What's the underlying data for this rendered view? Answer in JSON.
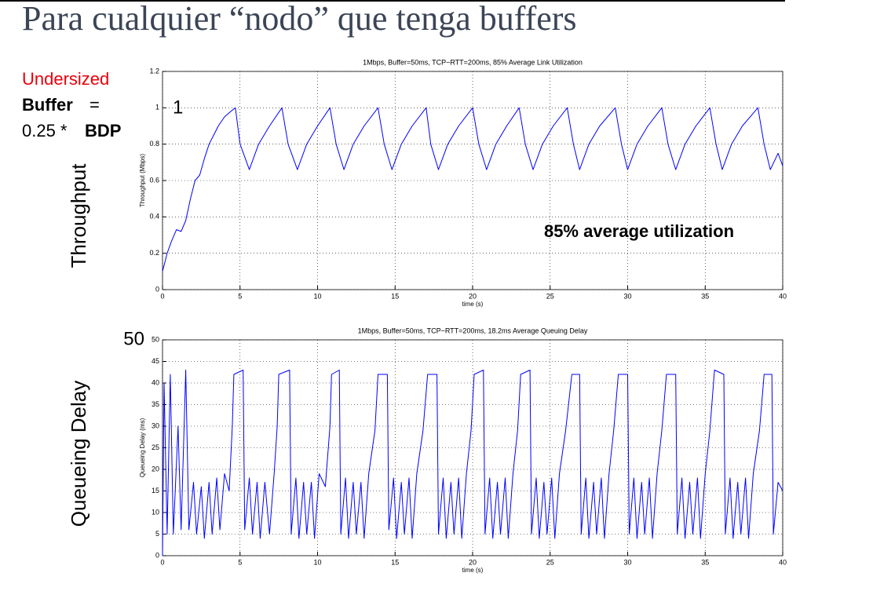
{
  "slide": {
    "title": "Para cualquier “nodo” que tenga buffers",
    "note": [
      "Undersized",
      "Buffer",
      "=",
      "0.25 *",
      "BDP"
    ],
    "row_labels": [
      "Throughput",
      "Queueing Delay"
    ]
  },
  "chart_data": [
    {
      "type": "line",
      "title": "1Mbps, Buffer=50ms, TCP−RTT=200ms, 85% Average Link Utilization",
      "xlabel": "time (s)",
      "ylabel": "Throughput (Mbps)",
      "annotations": [
        "1",
        "85% average utilization"
      ],
      "xlim": [
        0,
        40
      ],
      "xticks": [
        0,
        5,
        10,
        15,
        20,
        25,
        30,
        35,
        40
      ],
      "ylim": [
        0,
        1.2
      ],
      "yticks": [
        0,
        0.2,
        0.4,
        0.6,
        0.8,
        1,
        1.2
      ],
      "grid": true,
      "x": [
        0,
        0.3,
        0.6,
        0.9,
        1.2,
        1.5,
        1.8,
        2.1,
        2.4,
        2.7,
        3.0,
        3.3,
        3.6,
        4.0,
        4.4,
        4.7,
        5.0,
        5.6,
        6.2,
        6.9,
        7.7,
        8.1,
        8.7,
        9.3,
        10.0,
        10.8,
        11.2,
        11.7,
        12.3,
        13.0,
        13.9,
        14.3,
        14.8,
        15.4,
        16.1,
        17.0,
        17.3,
        17.8,
        18.4,
        19.1,
        20.0,
        20.4,
        20.9,
        21.5,
        22.2,
        23.0,
        23.4,
        23.9,
        24.5,
        25.2,
        26.1,
        26.5,
        26.9,
        27.5,
        28.2,
        29.2,
        29.6,
        30.0,
        30.6,
        31.3,
        32.2,
        32.6,
        33.1,
        33.7,
        34.4,
        35.3,
        35.7,
        36.1,
        36.7,
        37.4,
        38.4,
        38.8,
        39.2,
        39.7,
        40
      ],
      "series": [
        {
          "color": "#0000ff",
          "values": [
            0.1,
            0.2,
            0.27,
            0.33,
            0.32,
            0.38,
            0.5,
            0.6,
            0.63,
            0.72,
            0.8,
            0.85,
            0.9,
            0.95,
            0.98,
            1.0,
            0.8,
            0.66,
            0.8,
            0.9,
            1.0,
            0.8,
            0.66,
            0.8,
            0.9,
            1.0,
            0.8,
            0.66,
            0.8,
            0.9,
            1.0,
            0.8,
            0.66,
            0.8,
            0.9,
            1.0,
            0.8,
            0.66,
            0.8,
            0.9,
            1.0,
            0.8,
            0.66,
            0.8,
            0.9,
            1.0,
            0.8,
            0.66,
            0.8,
            0.9,
            1.0,
            0.8,
            0.66,
            0.8,
            0.9,
            1.0,
            0.8,
            0.66,
            0.8,
            0.9,
            1.0,
            0.8,
            0.66,
            0.8,
            0.9,
            1.0,
            0.8,
            0.66,
            0.8,
            0.9,
            1.0,
            0.8,
            0.66,
            0.75,
            0.68
          ]
        }
      ]
    },
    {
      "type": "line",
      "title": "1Mbps, Buffer=50ms, TCP−RTT=200ms, 18.2ms Average Queuing Delay",
      "xlabel": "time (s)",
      "ylabel": "Queueing Delay (ms)",
      "annotations": [
        "50"
      ],
      "xlim": [
        0,
        40
      ],
      "xticks": [
        0,
        5,
        10,
        15,
        20,
        25,
        30,
        35,
        40
      ],
      "ylim": [
        0,
        50
      ],
      "yticks": [
        0,
        5,
        10,
        15,
        20,
        25,
        30,
        35,
        40,
        45,
        50
      ],
      "grid": true,
      "x": [
        0,
        0.1,
        0.3,
        0.5,
        0.7,
        1.0,
        1.2,
        1.5,
        1.7,
        2.0,
        2.2,
        2.5,
        2.7,
        3.0,
        3.2,
        3.5,
        3.7,
        4.0,
        4.3,
        4.5,
        4.6,
        5.2,
        5.3,
        5.6,
        5.8,
        6.1,
        6.3,
        6.6,
        6.9,
        7.2,
        7.4,
        7.5,
        8.2,
        8.3,
        8.6,
        8.8,
        9.1,
        9.3,
        9.6,
        9.8,
        10.1,
        10.5,
        10.8,
        10.9,
        11.4,
        11.5,
        11.8,
        12.0,
        12.3,
        12.5,
        12.8,
        13.0,
        13.3,
        13.7,
        13.9,
        14.5,
        14.6,
        14.9,
        15.1,
        15.4,
        15.6,
        15.9,
        16.1,
        16.4,
        16.8,
        17.1,
        17.7,
        17.8,
        18.1,
        18.3,
        18.6,
        18.8,
        19.1,
        19.3,
        19.6,
        19.9,
        20.1,
        20.7,
        20.8,
        21.1,
        21.3,
        21.6,
        21.8,
        22.1,
        22.3,
        22.6,
        22.9,
        23.1,
        23.7,
        23.8,
        24.1,
        24.3,
        24.6,
        24.8,
        25.1,
        25.3,
        25.6,
        26.0,
        26.4,
        26.9,
        27.0,
        27.3,
        27.5,
        27.8,
        28.0,
        28.3,
        28.5,
        28.8,
        29.1,
        29.4,
        30.0,
        30.1,
        30.4,
        30.6,
        30.9,
        31.1,
        31.4,
        31.6,
        31.9,
        32.2,
        32.5,
        33.1,
        33.2,
        33.5,
        33.7,
        34.0,
        34.2,
        34.5,
        34.7,
        35.0,
        35.3,
        35.6,
        36.2,
        36.3,
        36.6,
        36.8,
        37.1,
        37.3,
        37.6,
        37.8,
        38.1,
        38.5,
        38.8,
        39.3,
        39.4,
        39.7,
        40
      ],
      "series": [
        {
          "color": "#0000ff",
          "values": [
            0,
            40,
            5,
            42,
            5,
            30,
            6,
            43,
            6,
            17,
            5,
            16,
            4,
            17,
            5,
            18,
            6,
            19,
            15,
            30,
            42,
            43,
            6,
            18,
            5,
            17,
            4,
            17,
            5,
            19,
            30,
            42,
            43,
            5,
            18,
            4,
            17,
            5,
            17,
            4,
            19,
            16,
            30,
            42,
            43,
            5,
            18,
            4,
            17,
            5,
            17,
            4,
            19,
            29,
            42,
            42,
            6,
            18,
            4,
            17,
            5,
            18,
            4,
            19,
            29,
            42,
            42,
            5,
            18,
            4,
            17,
            5,
            18,
            4,
            19,
            29,
            42,
            43,
            5,
            18,
            4,
            17,
            5,
            18,
            4,
            19,
            29,
            42,
            43,
            5,
            18,
            4,
            17,
            5,
            18,
            4,
            19,
            29,
            42,
            42,
            5,
            18,
            4,
            17,
            5,
            18,
            4,
            19,
            29,
            42,
            42,
            5,
            18,
            4,
            17,
            5,
            18,
            4,
            19,
            29,
            42,
            42,
            5,
            18,
            4,
            17,
            5,
            18,
            4,
            19,
            29,
            43,
            42,
            5,
            18,
            4,
            17,
            5,
            18,
            4,
            19,
            29,
            42,
            42,
            5,
            17,
            15
          ]
        }
      ]
    }
  ]
}
